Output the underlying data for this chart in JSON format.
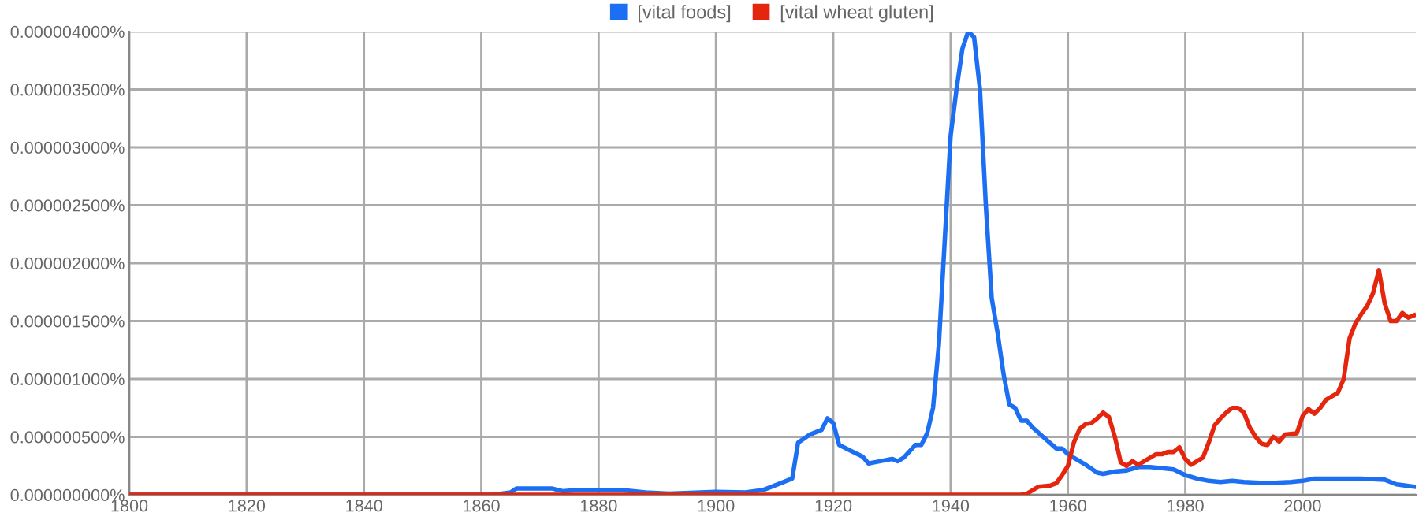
{
  "chart_data": {
    "type": "line",
    "xlim": [
      1800,
      2019.3
    ],
    "xticks": [
      1800,
      1820,
      1840,
      1860,
      1880,
      1900,
      1920,
      1940,
      1960,
      1980,
      2000
    ],
    "ylim": [
      0,
      4e-06
    ],
    "yticks": [
      {
        "value": 0,
        "label": "0.000000000%"
      },
      {
        "value": 5e-07,
        "label": "0.000000500%"
      },
      {
        "value": 1e-06,
        "label": "0.000001000%"
      },
      {
        "value": 1.5e-06,
        "label": "0.000001500%"
      },
      {
        "value": 2e-06,
        "label": "0.000002000%"
      },
      {
        "value": 2.5e-06,
        "label": "0.000002500%"
      },
      {
        "value": 3e-06,
        "label": "0.000003000%"
      },
      {
        "value": 3.5e-06,
        "label": "0.000003500%"
      },
      {
        "value": 4e-06,
        "label": "0.000004000%"
      }
    ],
    "grid": true,
    "legend": "top",
    "series": [
      {
        "name": "[vital foods]",
        "color": "#1c6ef2",
        "x": [
          1800,
          1862,
          1865,
          1866,
          1872,
          1874,
          1876,
          1884,
          1888,
          1892,
          1900,
          1905,
          1908,
          1911,
          1913,
          1914,
          1916,
          1918,
          1919,
          1920,
          1921,
          1923,
          1925,
          1926,
          1928,
          1930,
          1931,
          1932,
          1934,
          1935,
          1936,
          1937,
          1938,
          1939,
          1940,
          1941,
          1942,
          1943,
          1944,
          1945,
          1946,
          1947,
          1948,
          1949,
          1950,
          1951,
          1952,
          1953,
          1954,
          1956,
          1958,
          1959,
          1960,
          1962,
          1963,
          1965,
          1966,
          1968,
          1970,
          1972,
          1974,
          1976,
          1978,
          1980,
          1982,
          1984,
          1986,
          1988,
          1990,
          1994,
          1998,
          2000,
          2002,
          2006,
          2010,
          2014,
          2016,
          2019
        ],
        "values": [
          0,
          0,
          2e-08,
          5.5e-08,
          5.5e-08,
          3e-08,
          4e-08,
          4e-08,
          2e-08,
          1e-08,
          2.5e-08,
          2e-08,
          4e-08,
          1e-07,
          1.4e-07,
          4.5e-07,
          5.2e-07,
          5.6e-07,
          6.6e-07,
          6.2e-07,
          4.3e-07,
          3.8e-07,
          3.3e-07,
          2.7e-07,
          2.9e-07,
          3.1e-07,
          2.9e-07,
          3.2e-07,
          4.3e-07,
          4.3e-07,
          5.3e-07,
          7.5e-07,
          1.3e-06,
          2.2e-06,
          3.1e-06,
          3.5e-06,
          3.85e-06,
          4e-06,
          3.95e-06,
          3.5e-06,
          2.5e-06,
          1.7e-06,
          1.4e-06,
          1.05e-06,
          7.8e-07,
          7.5e-07,
          6.4e-07,
          6.4e-07,
          5.8e-07,
          4.9e-07,
          4e-07,
          4e-07,
          3.5e-07,
          2.9e-07,
          2.6e-07,
          1.9e-07,
          1.8e-07,
          2e-07,
          2.1e-07,
          2.4e-07,
          2.4e-07,
          2.3e-07,
          2.2e-07,
          1.7e-07,
          1.4e-07,
          1.2e-07,
          1.1e-07,
          1.2e-07,
          1.1e-07,
          1e-07,
          1.1e-07,
          1.2e-07,
          1.4e-07,
          1.4e-07,
          1.4e-07,
          1.3e-07,
          9e-08,
          7e-08
        ]
      },
      {
        "name": "[vital wheat gluten]",
        "color": "#e5260f",
        "x": [
          1800,
          1952,
          1953,
          1955,
          1957,
          1958,
          1959,
          1960,
          1961,
          1962,
          1963,
          1964,
          1965,
          1966,
          1967,
          1968,
          1969,
          1970,
          1971,
          1972,
          1973,
          1975,
          1976,
          1977,
          1978,
          1979,
          1980,
          1981,
          1983,
          1984,
          1985,
          1986,
          1987,
          1988,
          1989,
          1990,
          1991,
          1992,
          1993,
          1994,
          1995,
          1996,
          1997,
          1999,
          2000,
          2001,
          2002,
          2003,
          2004,
          2006,
          2007,
          2008,
          2009,
          2010,
          2011,
          2012,
          2013,
          2014,
          2015,
          2016,
          2017,
          2018,
          2019
        ],
        "values": [
          0,
          0,
          1e-08,
          7e-08,
          8e-08,
          1e-07,
          1.7e-07,
          2.5e-07,
          4.5e-07,
          5.7e-07,
          6.1e-07,
          6.2e-07,
          6.6e-07,
          7.1e-07,
          6.7e-07,
          5e-07,
          2.8e-07,
          2.5e-07,
          2.9e-07,
          2.6e-07,
          2.9e-07,
          3.5e-07,
          3.5e-07,
          3.7e-07,
          3.7e-07,
          4.1e-07,
          3.1e-07,
          2.6e-07,
          3.2e-07,
          4.5e-07,
          6e-07,
          6.6e-07,
          7.1e-07,
          7.5e-07,
          7.5e-07,
          7.1e-07,
          5.8e-07,
          5e-07,
          4.4e-07,
          4.3e-07,
          5e-07,
          4.6e-07,
          5.2e-07,
          5.3e-07,
          6.8e-07,
          7.4e-07,
          7e-07,
          7.5e-07,
          8.2e-07,
          8.8e-07,
          1e-06,
          1.35e-06,
          1.48e-06,
          1.56e-06,
          1.63e-06,
          1.74e-06,
          1.94e-06,
          1.65e-06,
          1.5e-06,
          1.5e-06,
          1.57e-06,
          1.53e-06,
          1.55e-06
        ]
      }
    ]
  }
}
